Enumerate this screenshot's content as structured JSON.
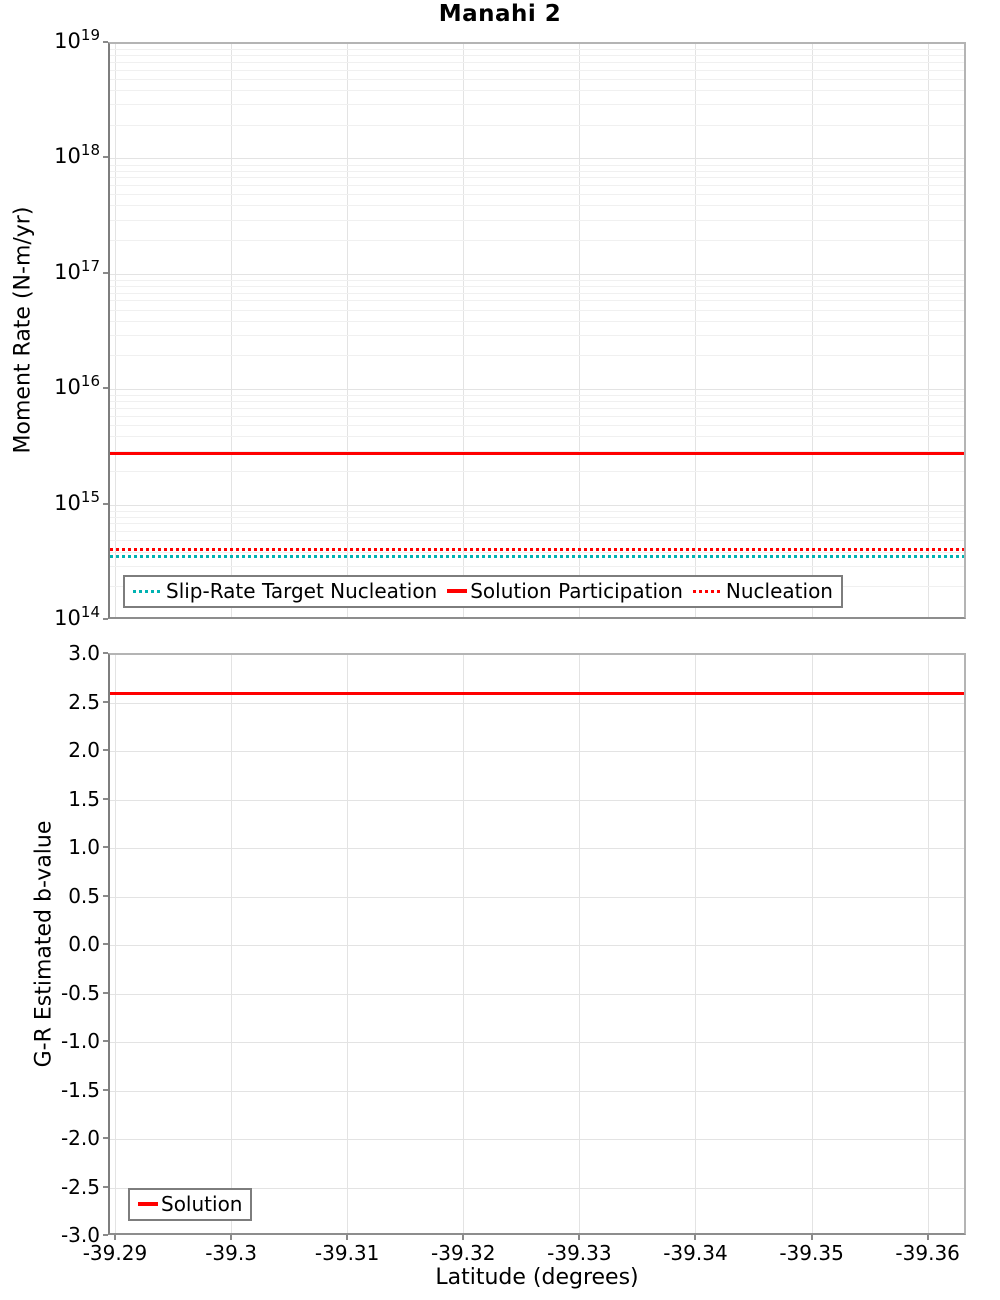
{
  "figure": {
    "title": "Manahi 2"
  },
  "colors": {
    "red": "#ff0000",
    "teal": "#00b2b2",
    "grid_major": "#e3e3e3",
    "grid_minor": "#f0f0f0",
    "plot_border": "#8d8d8d",
    "legend_border": "#7d7d7d"
  },
  "chart_data": [
    {
      "type": "line",
      "title": "Manahi 2",
      "ylabel": "Moment Rate (N-m/yr)",
      "yscale": "log",
      "ylim": [
        100000000000000.0,
        1e+19
      ],
      "ytick_base": "10",
      "ytick_exponents": [
        "19",
        "18",
        "17",
        "16",
        "15",
        "14"
      ],
      "xlim": [
        -39.2894,
        -39.3633
      ],
      "grid": "major-and-log-minor",
      "legend_position": "inside-bottom-left",
      "series": [
        {
          "name": "Slip-Rate Target Nucleation",
          "color": "#00b2b2",
          "style": "dotted",
          "value": 360000000000000.0
        },
        {
          "name": "Solution Participation",
          "color": "#ff0000",
          "style": "solid",
          "value": 2800000000000000.0
        },
        {
          "name": "Nucleation",
          "color": "#ff0000",
          "style": "dotted",
          "value": 420000000000000.0
        }
      ]
    },
    {
      "type": "line",
      "ylabel": "G-R Estimated b-value",
      "xlabel": "Latitude (degrees)",
      "ylim": [
        -3.0,
        3.0
      ],
      "ytick_step": 0.5,
      "ytick_labels": [
        "3.0",
        "2.5",
        "2.0",
        "1.5",
        "1.0",
        "0.5",
        "0.0",
        "-0.5",
        "-1.0",
        "-1.5",
        "-2.0",
        "-2.5",
        "-3.0"
      ],
      "xlim": [
        -39.2894,
        -39.3633
      ],
      "xticks": [
        -39.29,
        -39.3,
        -39.31,
        -39.32,
        -39.33,
        -39.34,
        -39.35,
        -39.36
      ],
      "xtick_labels": [
        "-39.29",
        "-39.3",
        "-39.31",
        "-39.32",
        "-39.33",
        "-39.34",
        "-39.35",
        "-39.36"
      ],
      "grid": "major",
      "legend_position": "inside-bottom-left",
      "series": [
        {
          "name": "Solution",
          "color": "#ff0000",
          "style": "solid",
          "value": 2.6
        }
      ]
    }
  ]
}
